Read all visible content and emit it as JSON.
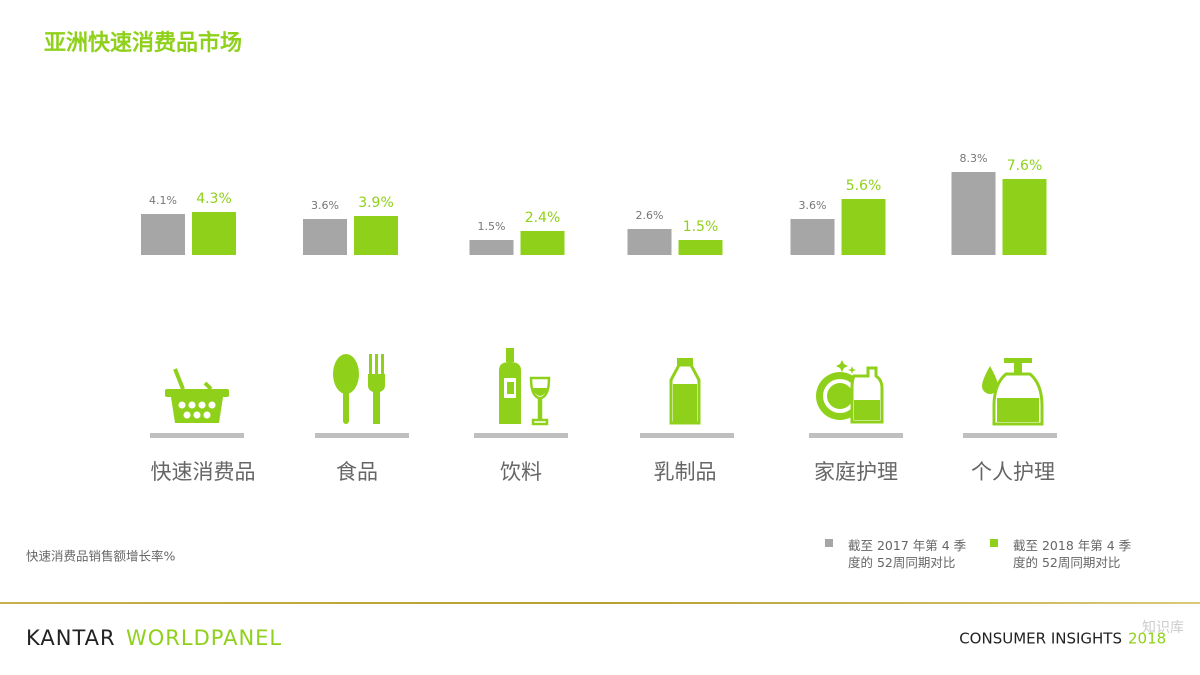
{
  "chart_data": {
    "type": "bar",
    "title": "亚洲快速消费品市场",
    "categories": [
      "快速消费品",
      "食品",
      "饮料",
      "乳制品",
      "家庭护理",
      "个人护理"
    ],
    "series": [
      {
        "name": "截至 2017 年第 4 季度的 52周同期对比",
        "color": "#a6a6a6",
        "values": [
          4.1,
          3.6,
          1.5,
          2.6,
          3.6,
          8.3
        ],
        "value_labels": [
          "4.1%",
          "3.6%",
          "1.5%",
          "2.6%",
          "3.6%",
          "8.3%"
        ]
      },
      {
        "name": "截至 2018 年第 4 季度的 52周同期对比",
        "color": "#8fd11a",
        "values": [
          4.3,
          3.9,
          2.4,
          1.5,
          5.6,
          7.6
        ],
        "value_labels": [
          "4.3%",
          "3.9%",
          "2.4%",
          "1.5%",
          "5.6%",
          "7.6%"
        ]
      }
    ],
    "note": "快速消费品销售额增长率%"
  },
  "footer": {
    "brand": "KANTAR",
    "brand_accent": "WORLDPANEL",
    "tagline": "CONSUMER INSIGHTS",
    "year": "2018",
    "watermark": "知识库"
  }
}
